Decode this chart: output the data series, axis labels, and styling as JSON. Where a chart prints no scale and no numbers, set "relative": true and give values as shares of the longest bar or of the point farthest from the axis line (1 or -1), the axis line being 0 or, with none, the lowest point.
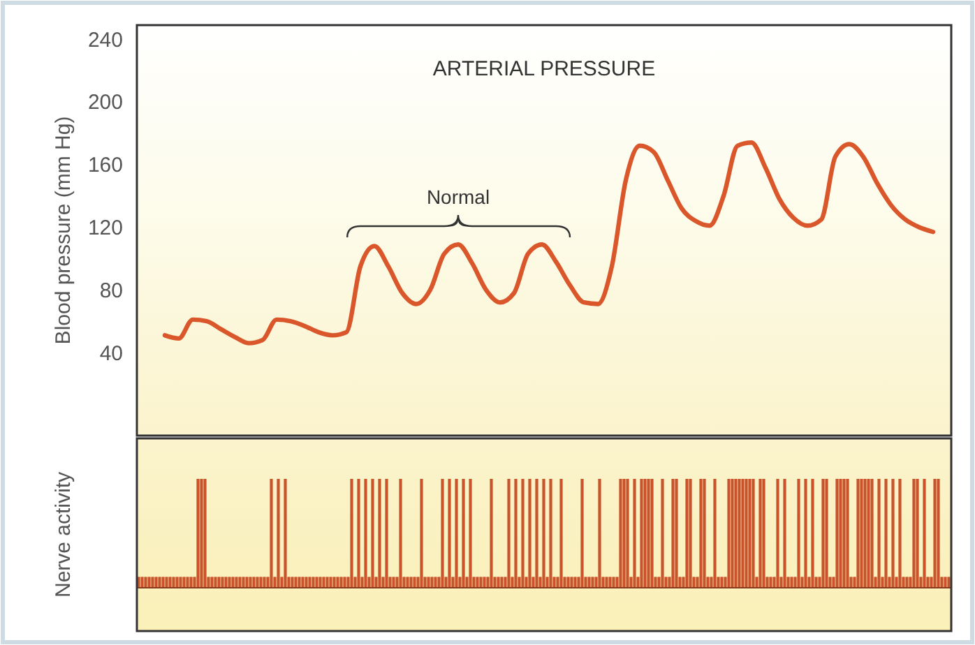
{
  "chart_data": [
    {
      "type": "line",
      "title": "ARTERIAL PRESSURE",
      "ylabel": "Blood pressure (mm Hg)",
      "annotations": [
        "Normal"
      ],
      "categories": [
        null,
        null,
        null,
        null,
        null,
        null,
        null,
        null,
        null,
        null,
        null,
        null,
        null,
        null,
        null,
        null,
        null,
        null,
        null,
        null,
        null,
        null,
        null,
        null,
        null,
        null,
        null,
        null,
        null,
        null,
        null,
        null,
        null,
        null,
        null,
        null,
        null,
        null,
        null,
        null,
        null,
        null,
        null,
        null,
        null,
        null,
        null,
        null,
        null,
        null,
        null,
        null,
        null,
        null,
        null,
        null,
        null,
        null,
        null
      ],
      "series": [
        {
          "color": "#d9572b",
          "values": [
            null,
            null,
            51,
            49,
            61,
            60,
            55,
            50,
            46,
            48,
            61,
            60,
            57,
            53,
            51,
            53,
            95,
            108,
            95,
            78,
            71,
            80,
            103,
            109,
            97,
            80,
            72,
            78,
            103,
            109,
            98,
            83,
            72,
            71,
            95,
            150,
            172,
            168,
            150,
            132,
            124,
            121,
            140,
            172,
            174,
            158,
            138,
            126,
            121,
            125,
            165,
            173,
            165,
            148,
            134,
            125,
            120,
            117,
            null
          ]
        }
      ],
      "ylim": [
        -13,
        249
      ],
      "yticks": [
        40,
        80,
        120,
        160,
        200,
        240
      ],
      "tick_labels": "y"
    },
    {
      "type": "bar",
      "ylabel": "Nerve activity",
      "relative": true,
      "tick_labels": false,
      "categories": [
        null,
        null,
        null,
        null,
        null,
        null,
        null,
        null,
        null,
        null,
        null,
        null,
        null,
        null,
        null,
        null,
        null,
        null,
        null,
        null,
        null,
        null,
        null,
        null,
        null,
        null,
        null,
        null,
        null,
        null,
        null,
        null,
        null,
        null,
        null,
        null,
        null,
        null,
        null,
        null,
        null,
        null,
        null,
        null,
        null,
        null,
        null,
        null,
        null,
        null,
        null,
        null,
        null,
        null,
        null,
        null,
        null,
        null,
        null,
        null,
        null,
        null,
        null,
        null,
        null,
        null,
        null,
        null,
        null,
        null,
        null,
        null,
        null,
        null,
        null,
        null,
        null,
        null,
        null,
        null,
        null,
        null,
        null,
        null,
        null,
        null,
        null,
        null,
        null,
        null,
        null,
        null,
        null,
        null,
        null,
        null,
        null,
        null,
        null,
        null,
        null,
        null,
        null,
        null,
        null,
        null,
        null,
        null,
        null,
        null,
        null,
        null,
        null,
        null,
        null,
        null,
        null,
        null,
        null,
        null,
        null,
        null,
        null,
        null,
        null,
        null,
        null,
        null,
        null,
        null,
        null,
        null,
        null,
        null,
        null,
        null,
        null,
        null,
        null,
        null,
        null,
        null,
        null,
        null,
        null,
        null,
        null,
        null,
        null,
        null,
        null,
        null,
        null,
        null,
        null,
        null,
        null,
        null,
        null,
        null,
        null,
        null,
        null,
        null,
        null,
        null,
        null,
        null,
        null,
        null,
        null,
        null,
        null,
        null,
        null,
        null,
        null,
        null,
        null,
        null,
        null,
        null,
        null,
        null,
        null,
        null,
        null,
        null,
        null,
        null,
        null,
        null,
        null,
        null,
        null,
        null,
        null,
        null,
        null,
        null,
        null,
        null,
        null,
        null,
        null,
        null,
        null,
        null,
        null,
        null,
        null,
        null,
        null,
        null,
        null,
        null,
        null,
        null,
        null,
        null,
        null,
        null,
        null,
        null,
        null,
        null,
        null,
        null,
        null,
        null,
        null,
        null,
        null
      ],
      "series": [
        {
          "color": "#c9542c",
          "values": [
            0.1,
            0.1,
            0.1,
            0.1,
            0.1,
            0.1,
            0.1,
            0.1,
            0.1,
            0.1,
            0.1,
            0.1,
            0.1,
            0.1,
            0.1,
            0.1,
            0.1,
            1,
            1,
            1,
            0.1,
            0.1,
            0.1,
            0.1,
            0.1,
            0.1,
            0.1,
            0.1,
            0.1,
            0.1,
            0.1,
            0.1,
            0.1,
            0.1,
            0.1,
            0.1,
            0.1,
            0.1,
            1,
            0.1,
            1,
            0.1,
            1,
            0.1,
            0.1,
            0.1,
            0.1,
            0.1,
            0.1,
            0.1,
            0.1,
            0.1,
            0.1,
            0.1,
            0.1,
            0.1,
            0.1,
            0.1,
            0.1,
            0.1,
            0.1,
            1,
            0.1,
            1,
            0.1,
            1,
            0.1,
            1,
            0.1,
            1,
            0.1,
            1,
            0.1,
            0.1,
            0.1,
            1,
            0.1,
            0.1,
            0.1,
            0.1,
            0.1,
            1,
            0.1,
            0.1,
            0.1,
            0.1,
            0.1,
            1,
            0.1,
            1,
            0.1,
            1,
            0.1,
            1,
            0.1,
            1,
            0.1,
            0.1,
            0.1,
            0.1,
            0.1,
            1,
            0.1,
            0.1,
            0.1,
            0.1,
            1,
            0.1,
            1,
            0.1,
            1,
            0.1,
            1,
            0.1,
            1,
            0.1,
            1,
            0.1,
            1,
            0.1,
            0.1,
            1,
            0.1,
            0.1,
            0.1,
            0.1,
            0.1,
            1,
            0.1,
            0.1,
            0.1,
            0.1,
            1,
            0.1,
            0.1,
            0.1,
            0.1,
            0.1,
            1,
            1,
            1,
            0.1,
            1,
            0.1,
            1,
            1,
            1,
            1,
            0.1,
            0.1,
            1,
            0.1,
            0.1,
            1,
            1,
            0.1,
            0.1,
            1,
            1,
            0.1,
            0.1,
            1,
            1,
            0.1,
            0.1,
            1,
            0.1,
            0.1,
            0.1,
            1,
            1,
            1,
            1,
            1,
            1,
            1,
            1,
            0.1,
            1,
            1,
            0.1,
            0.1,
            0.1,
            1,
            0.1,
            1,
            0.1,
            0.1,
            0.1,
            1,
            0.1,
            1,
            0.1,
            1,
            0.1,
            0.1,
            1,
            1,
            0.1,
            0.1,
            1,
            1,
            1,
            1,
            0.1,
            0.1,
            1,
            1,
            1,
            1,
            1,
            0.1,
            1,
            0.1,
            1,
            0.1,
            1,
            0.1,
            1,
            0.1,
            0.1,
            0.1,
            1,
            1,
            0.1,
            1,
            0.1,
            0.1,
            1,
            1,
            0.1,
            0.1,
            0.1
          ]
        }
      ]
    }
  ]
}
